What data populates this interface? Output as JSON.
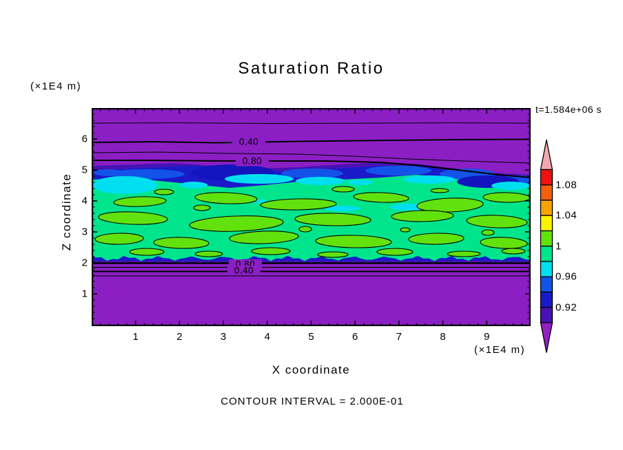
{
  "title": "Saturation Ratio",
  "annotations": {
    "timestamp": "t=1.584e+06 s",
    "contour_interval": "CONTOUR INTERVAL = 2.000E-01"
  },
  "axes": {
    "x": {
      "title": "X coordinate",
      "unit": "(×1E4 m)",
      "tick_labels": [
        "1",
        "2",
        "3",
        "4",
        "5",
        "6",
        "7",
        "8",
        "9"
      ],
      "range": [
        0,
        10
      ]
    },
    "z": {
      "title": "Z coordinate",
      "unit": "(×1E4 m)",
      "tick_labels": [
        "6",
        "5",
        "4",
        "3",
        "2",
        "1"
      ],
      "range": [
        0,
        7
      ]
    }
  },
  "contour_labels": {
    "upper": [
      "0.40",
      "0.80"
    ],
    "lower": [
      "0.80",
      "0.40"
    ]
  },
  "colorbar": {
    "labels": [
      "1.08",
      "1.04",
      "1",
      "0.96",
      "0.92"
    ],
    "over_color": "#f2a6b0",
    "under_color": "#9320c0",
    "band_colors_top_to_bottom": [
      "#ee1111",
      "#f4600d",
      "#f7a400",
      "#fdf300",
      "#62e20d",
      "#00e58c",
      "#00dff0",
      "#1353e8",
      "#1a1ac8",
      "#4812b4"
    ]
  },
  "palette": {
    "purple": "#8b1fc3",
    "violet": "#4812b4",
    "navy": "#1a1ac8",
    "navy_dark": "#1414bc",
    "blue": "#1353e8",
    "cyan": "#00dff0",
    "spring_green": "#00e58c",
    "lime": "#62e20d",
    "line": "#000000"
  },
  "chart_data": {
    "type": "filled_contour",
    "field": "Saturation Ratio",
    "time_s": 1584000,
    "xlabel": "X coordinate (×1E4 m)",
    "ylabel": "Z coordinate (×1E4 m)",
    "xlim": [
      0,
      10
    ],
    "ylim": [
      0,
      7
    ],
    "contour_interval": 0.2,
    "labeled_line_contours": [
      0.4,
      0.8
    ],
    "color_levels": [
      0.9,
      0.92,
      0.94,
      0.96,
      0.98,
      1.0,
      1.02,
      1.04,
      1.06,
      1.08,
      1.1
    ],
    "colorbar_tick_values": [
      1.08,
      1.04,
      1.0,
      0.96,
      0.92
    ],
    "structure": [
      {
        "region": "upper purple",
        "z_range": [
          5.3,
          7.0
        ],
        "value": "S < 0.9; line contours 0.2, 0.4, 0.6, 0.8 at z ≈ 6.5, 5.9, 5.6, 5.3"
      },
      {
        "region": "cloud-top transition",
        "z_range": [
          4.5,
          5.3
        ],
        "value": "violet/navy/blue/cyan bands, S ≈ 0.90–0.98"
      },
      {
        "region": "cloud layer",
        "z_range": [
          2.1,
          4.6
        ],
        "value": "spring-green S ≈ 0.98–1.0 with chartreuse S > 1.0 patches outlined by the 1.0 contour"
      },
      {
        "region": "lower purple",
        "z_range": [
          0.0,
          2.0
        ],
        "value": "S < 0.9; line contours 0.8, 0.6, 0.4, 0.2 at z ≈ 2.02, 1.87, 1.73, 1.58"
      }
    ],
    "legend_position": "right vertical colorbar with over/under arrow triangles"
  }
}
